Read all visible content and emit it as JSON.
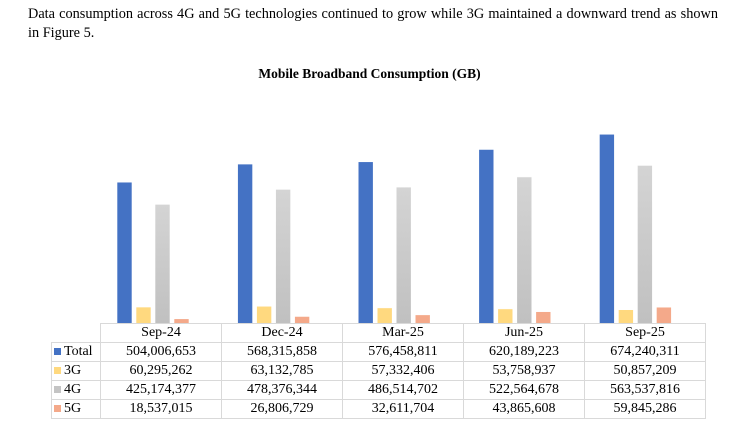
{
  "paragraph": "Data consumption across 4G and 5G technologies continued to grow while 3G maintained a downward trend as shown in Figure 5.",
  "chart_data": {
    "type": "bar",
    "title": "Mobile Broadband Consumption (GB)",
    "categories": [
      "Sep-24",
      "Dec-24",
      "Mar-25",
      "Jun-25",
      "Sep-25"
    ],
    "series": [
      {
        "name": "Total",
        "color": "#4472c4",
        "values": [
          504006653,
          568315858,
          576458811,
          620189223,
          674240311
        ],
        "labels": [
          "504,006,653",
          "568,315,858",
          "576,458,811",
          "620,189,223",
          "674,240,311"
        ]
      },
      {
        "name": "3G",
        "color": "#ffd97f",
        "values": [
          60295262,
          63132785,
          57332406,
          53758937,
          50857209
        ],
        "labels": [
          "60,295,262",
          "63,132,785",
          "57,332,406",
          "53,758,937",
          "50,857,209"
        ]
      },
      {
        "name": "4G",
        "color": "#c4c4c4",
        "values": [
          425174377,
          478376344,
          486514702,
          522564678,
          563537816
        ],
        "labels": [
          "425,174,377",
          "478,376,344",
          "486,514,702",
          "522,564,678",
          "563,537,816"
        ]
      },
      {
        "name": "5G",
        "color": "#f4a98a",
        "values": [
          18537015,
          26806729,
          32611704,
          43865608,
          59845286
        ],
        "labels": [
          "18,537,015",
          "26,806,729",
          "32,611,704",
          "43,865,608",
          "59,845,286"
        ]
      }
    ],
    "ylim": [
      0,
      700000000
    ],
    "grid": false,
    "legend": "data-table"
  }
}
